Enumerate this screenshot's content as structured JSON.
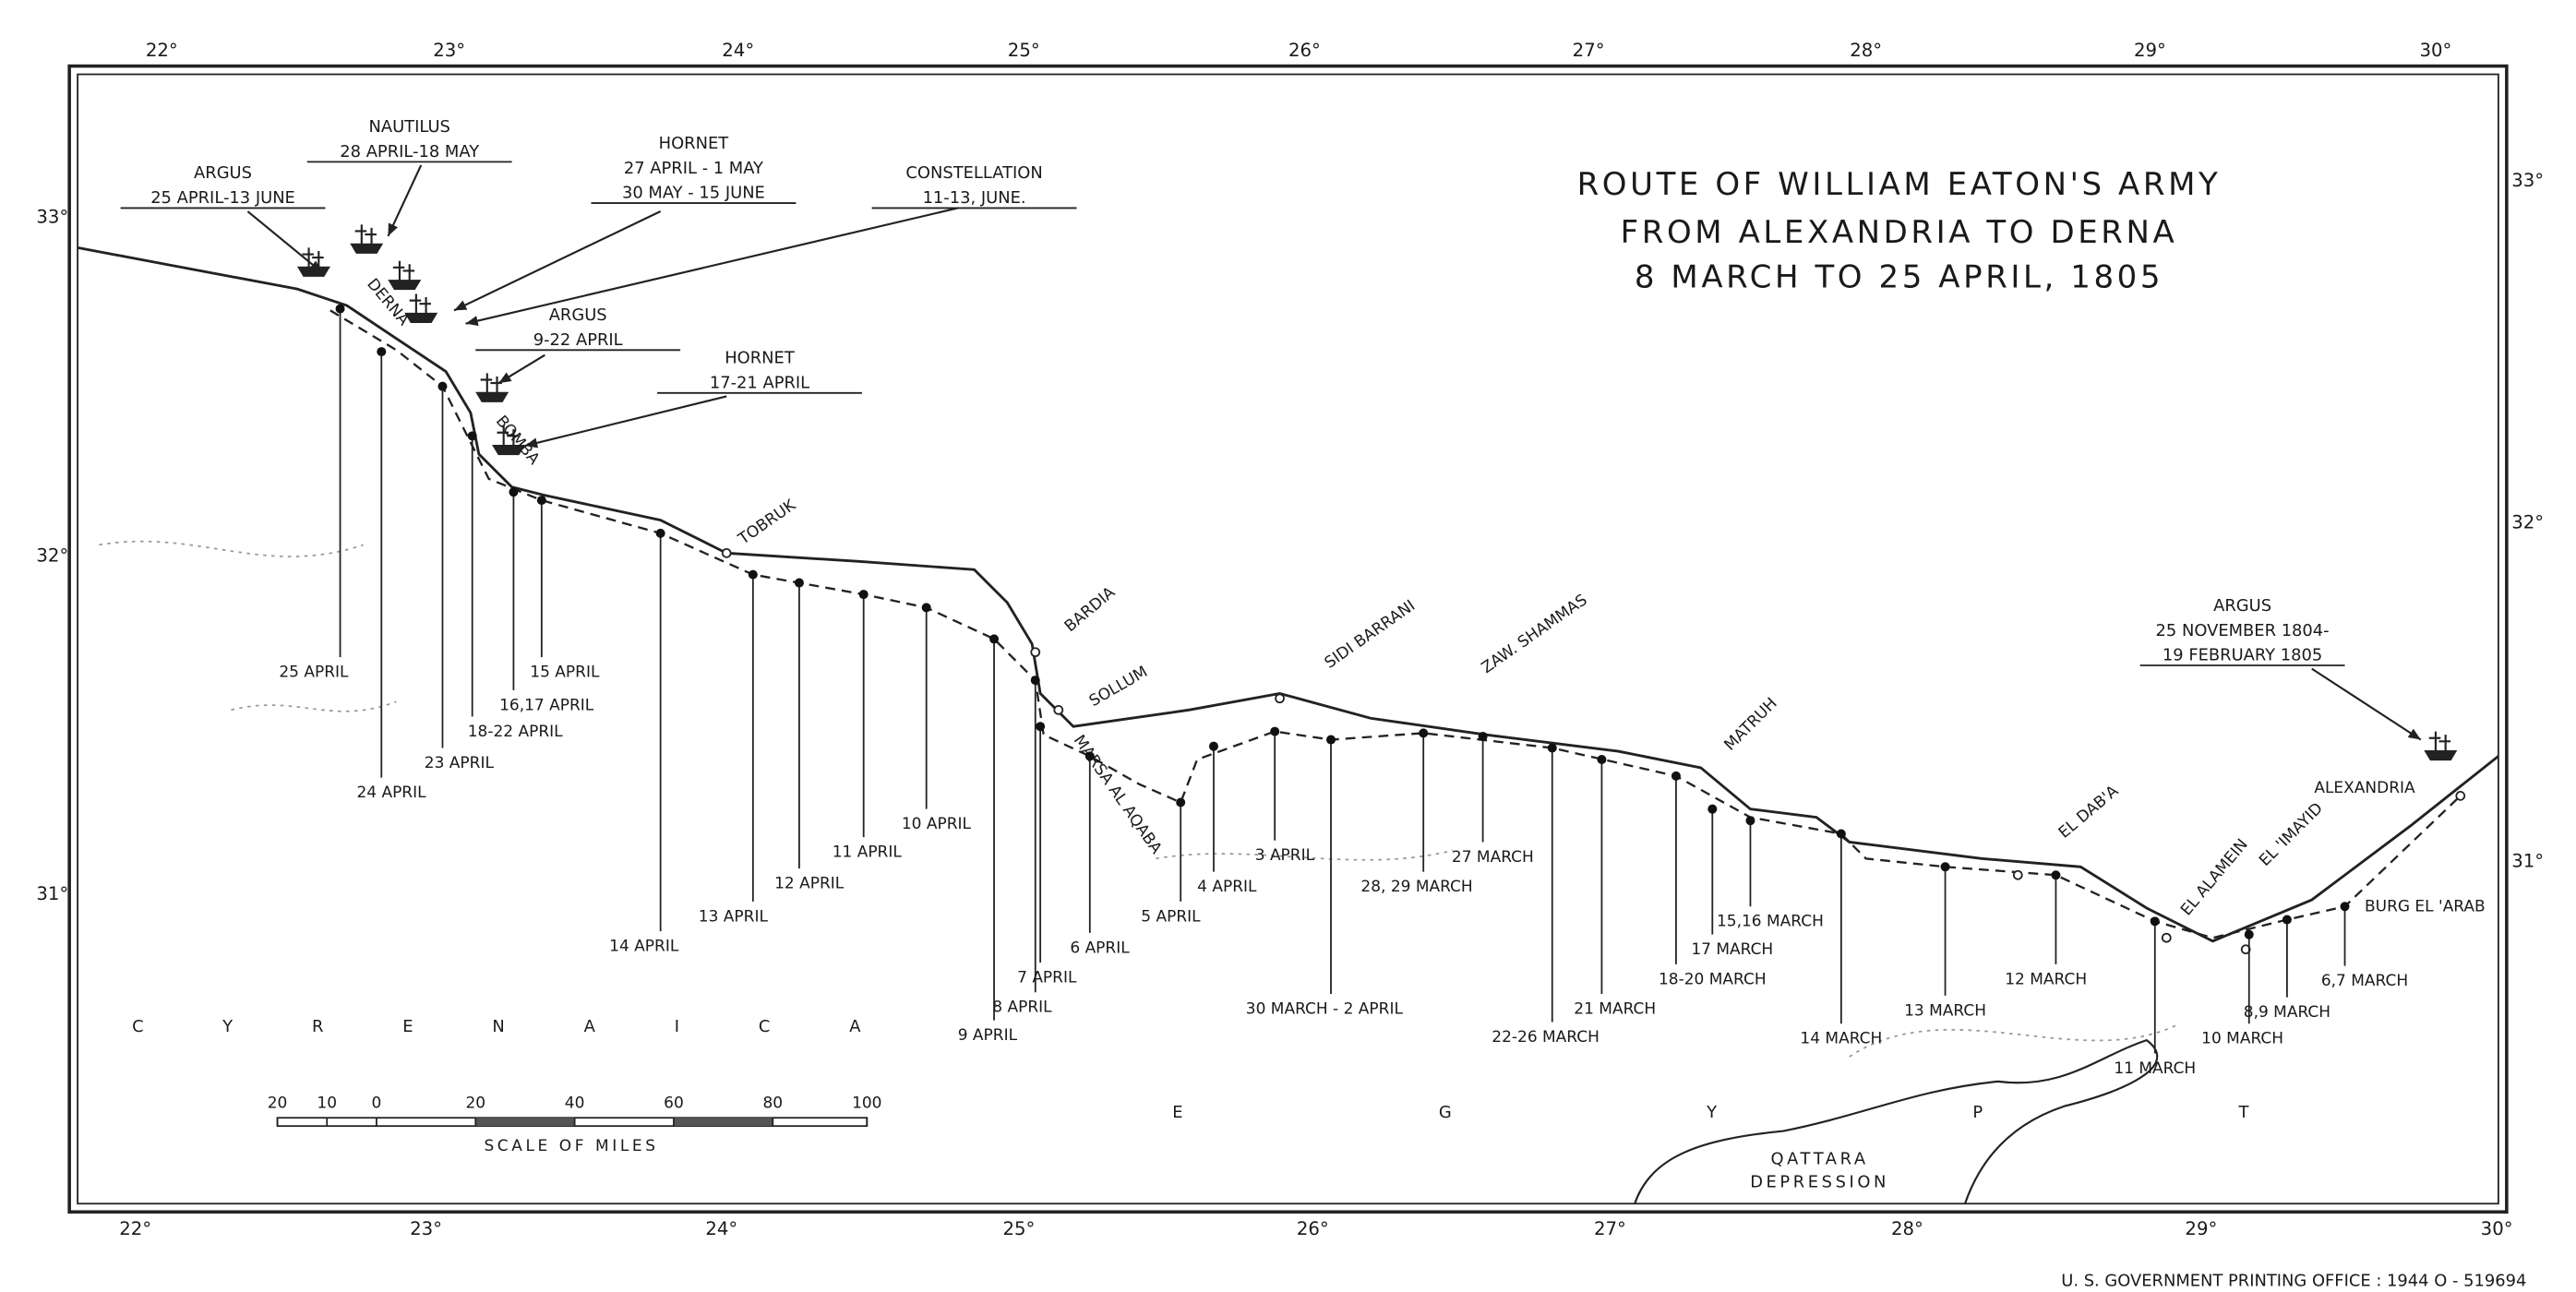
{
  "title": [
    "ROUTE OF WILLIAM EATON'S ARMY",
    "FROM ALEXANDRIA TO DERNA",
    "8 MARCH TO 25 APRIL, 1805"
  ],
  "longitudes": [
    "22°",
    "23°",
    "24°",
    "25°",
    "26°",
    "27°",
    "28°",
    "29°",
    "30°"
  ],
  "latitudes_left": [
    "33°",
    "32°",
    "31°"
  ],
  "latitudes_right": [
    "33°",
    "32°",
    "31°"
  ],
  "ships": [
    {
      "name": "ARGUS",
      "dates": [
        "25 APRIL-13 JUNE"
      ]
    },
    {
      "name": "NAUTILUS",
      "dates": [
        "28 APRIL-18 MAY"
      ]
    },
    {
      "name": "HORNET",
      "dates": [
        "27 APRIL - 1 MAY",
        "30 MAY - 15 JUNE"
      ]
    },
    {
      "name": "CONSTELLATION",
      "dates": [
        "11-13, JUNE."
      ]
    },
    {
      "name": "ARGUS",
      "dates": [
        "9-22 APRIL"
      ]
    },
    {
      "name": "HORNET",
      "dates": [
        "17-21 APRIL"
      ]
    },
    {
      "name": "ARGUS",
      "dates": [
        "25 NOVEMBER 1804-",
        "19 FEBRUARY 1805"
      ]
    }
  ],
  "places": [
    "DERNA",
    "BOMBA",
    "TOBRUK",
    "BARDIA",
    "SOLLUM",
    "MARSA AL AQABA",
    "SIDI BARRANI",
    "ZAW. SHAMMAS",
    "MATRUH",
    "EL DAB'A",
    "EL ALAMEIN",
    "EL 'IMAYID",
    "BURG EL 'ARAB",
    "ALEXANDRIA"
  ],
  "stops": [
    "25 APRIL",
    "24 APRIL",
    "23 APRIL",
    "18-22 APRIL",
    "16,17 APRIL",
    "15 APRIL",
    "14 APRIL",
    "13 APRIL",
    "12 APRIL",
    "11 APRIL",
    "10 APRIL",
    "9 APRIL",
    "8 APRIL",
    "7 APRIL",
    "6 APRIL",
    "5 APRIL",
    "4 APRIL",
    "3 APRIL",
    "30 MARCH - 2 APRIL",
    "28, 29 MARCH",
    "27 MARCH",
    "22-26 MARCH",
    "21 MARCH",
    "18-20 MARCH",
    "17 MARCH",
    "15,16 MARCH",
    "14 MARCH",
    "13 MARCH",
    "12 MARCH",
    "11 MARCH",
    "10 MARCH",
    "8,9 MARCH",
    "6,7 MARCH"
  ],
  "regions": [
    "CYRENAICA",
    "EGYPT",
    "QATTARA",
    "DEPRESSION"
  ],
  "scale": {
    "ticks": [
      "20",
      "10",
      "0",
      "20",
      "40",
      "60",
      "80",
      "100"
    ],
    "caption": "SCALE OF MILES"
  },
  "footer": "U. S. GOVERNMENT PRINTING OFFICE : 1944 O - 519694"
}
